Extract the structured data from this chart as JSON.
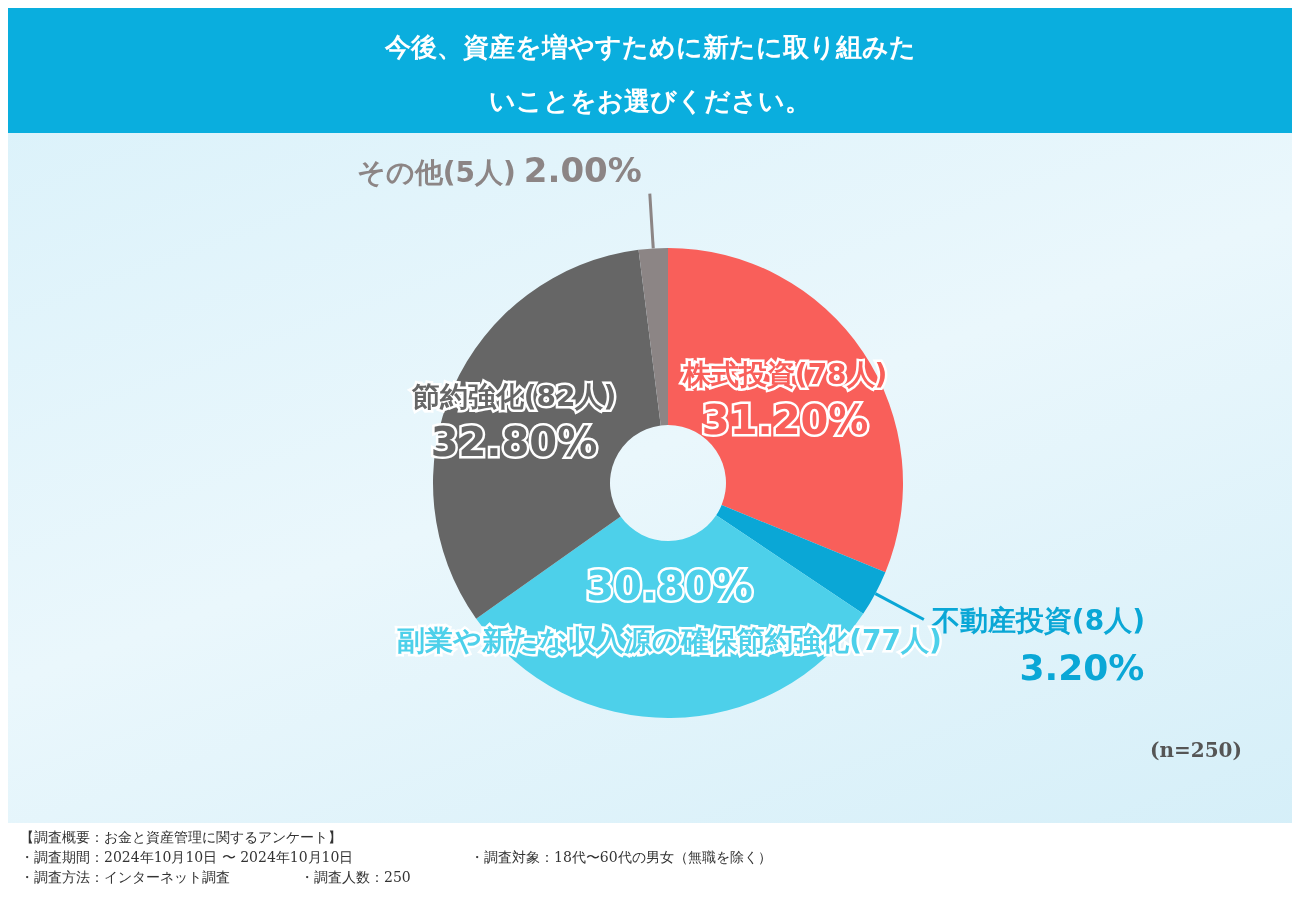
{
  "chart_data": {
    "type": "donut",
    "title": "今後、資産を増やすために新たに取り組みたいことをお選びください。",
    "categories": [
      "株式投資(78人)",
      "不動産投資(8人)",
      "副業や新たな収入源の確保節約強化(77人)",
      "節約強化(82人)",
      "その他(5人)"
    ],
    "values": [
      31.2,
      3.2,
      30.8,
      32.8,
      2.0
    ],
    "value_labels": [
      "31.20%",
      "3.20%",
      "30.80%",
      "32.80%",
      "2.00%"
    ],
    "colors": [
      "#f95f5a",
      "#0aa7d6",
      "#4dd0ea",
      "#666666",
      "#8c8585"
    ],
    "legend": false,
    "annotations": [
      "(n=250)",
      "【調査概要：お金と資産管理に関するアンケート】",
      "・調査期間：2024年10月10日 〜 2024年10月10日",
      "・調査対象：18代〜60代の男女（無職を除く）",
      "・調査方法：インターネット調査",
      "・調査人数：250"
    ]
  }
}
